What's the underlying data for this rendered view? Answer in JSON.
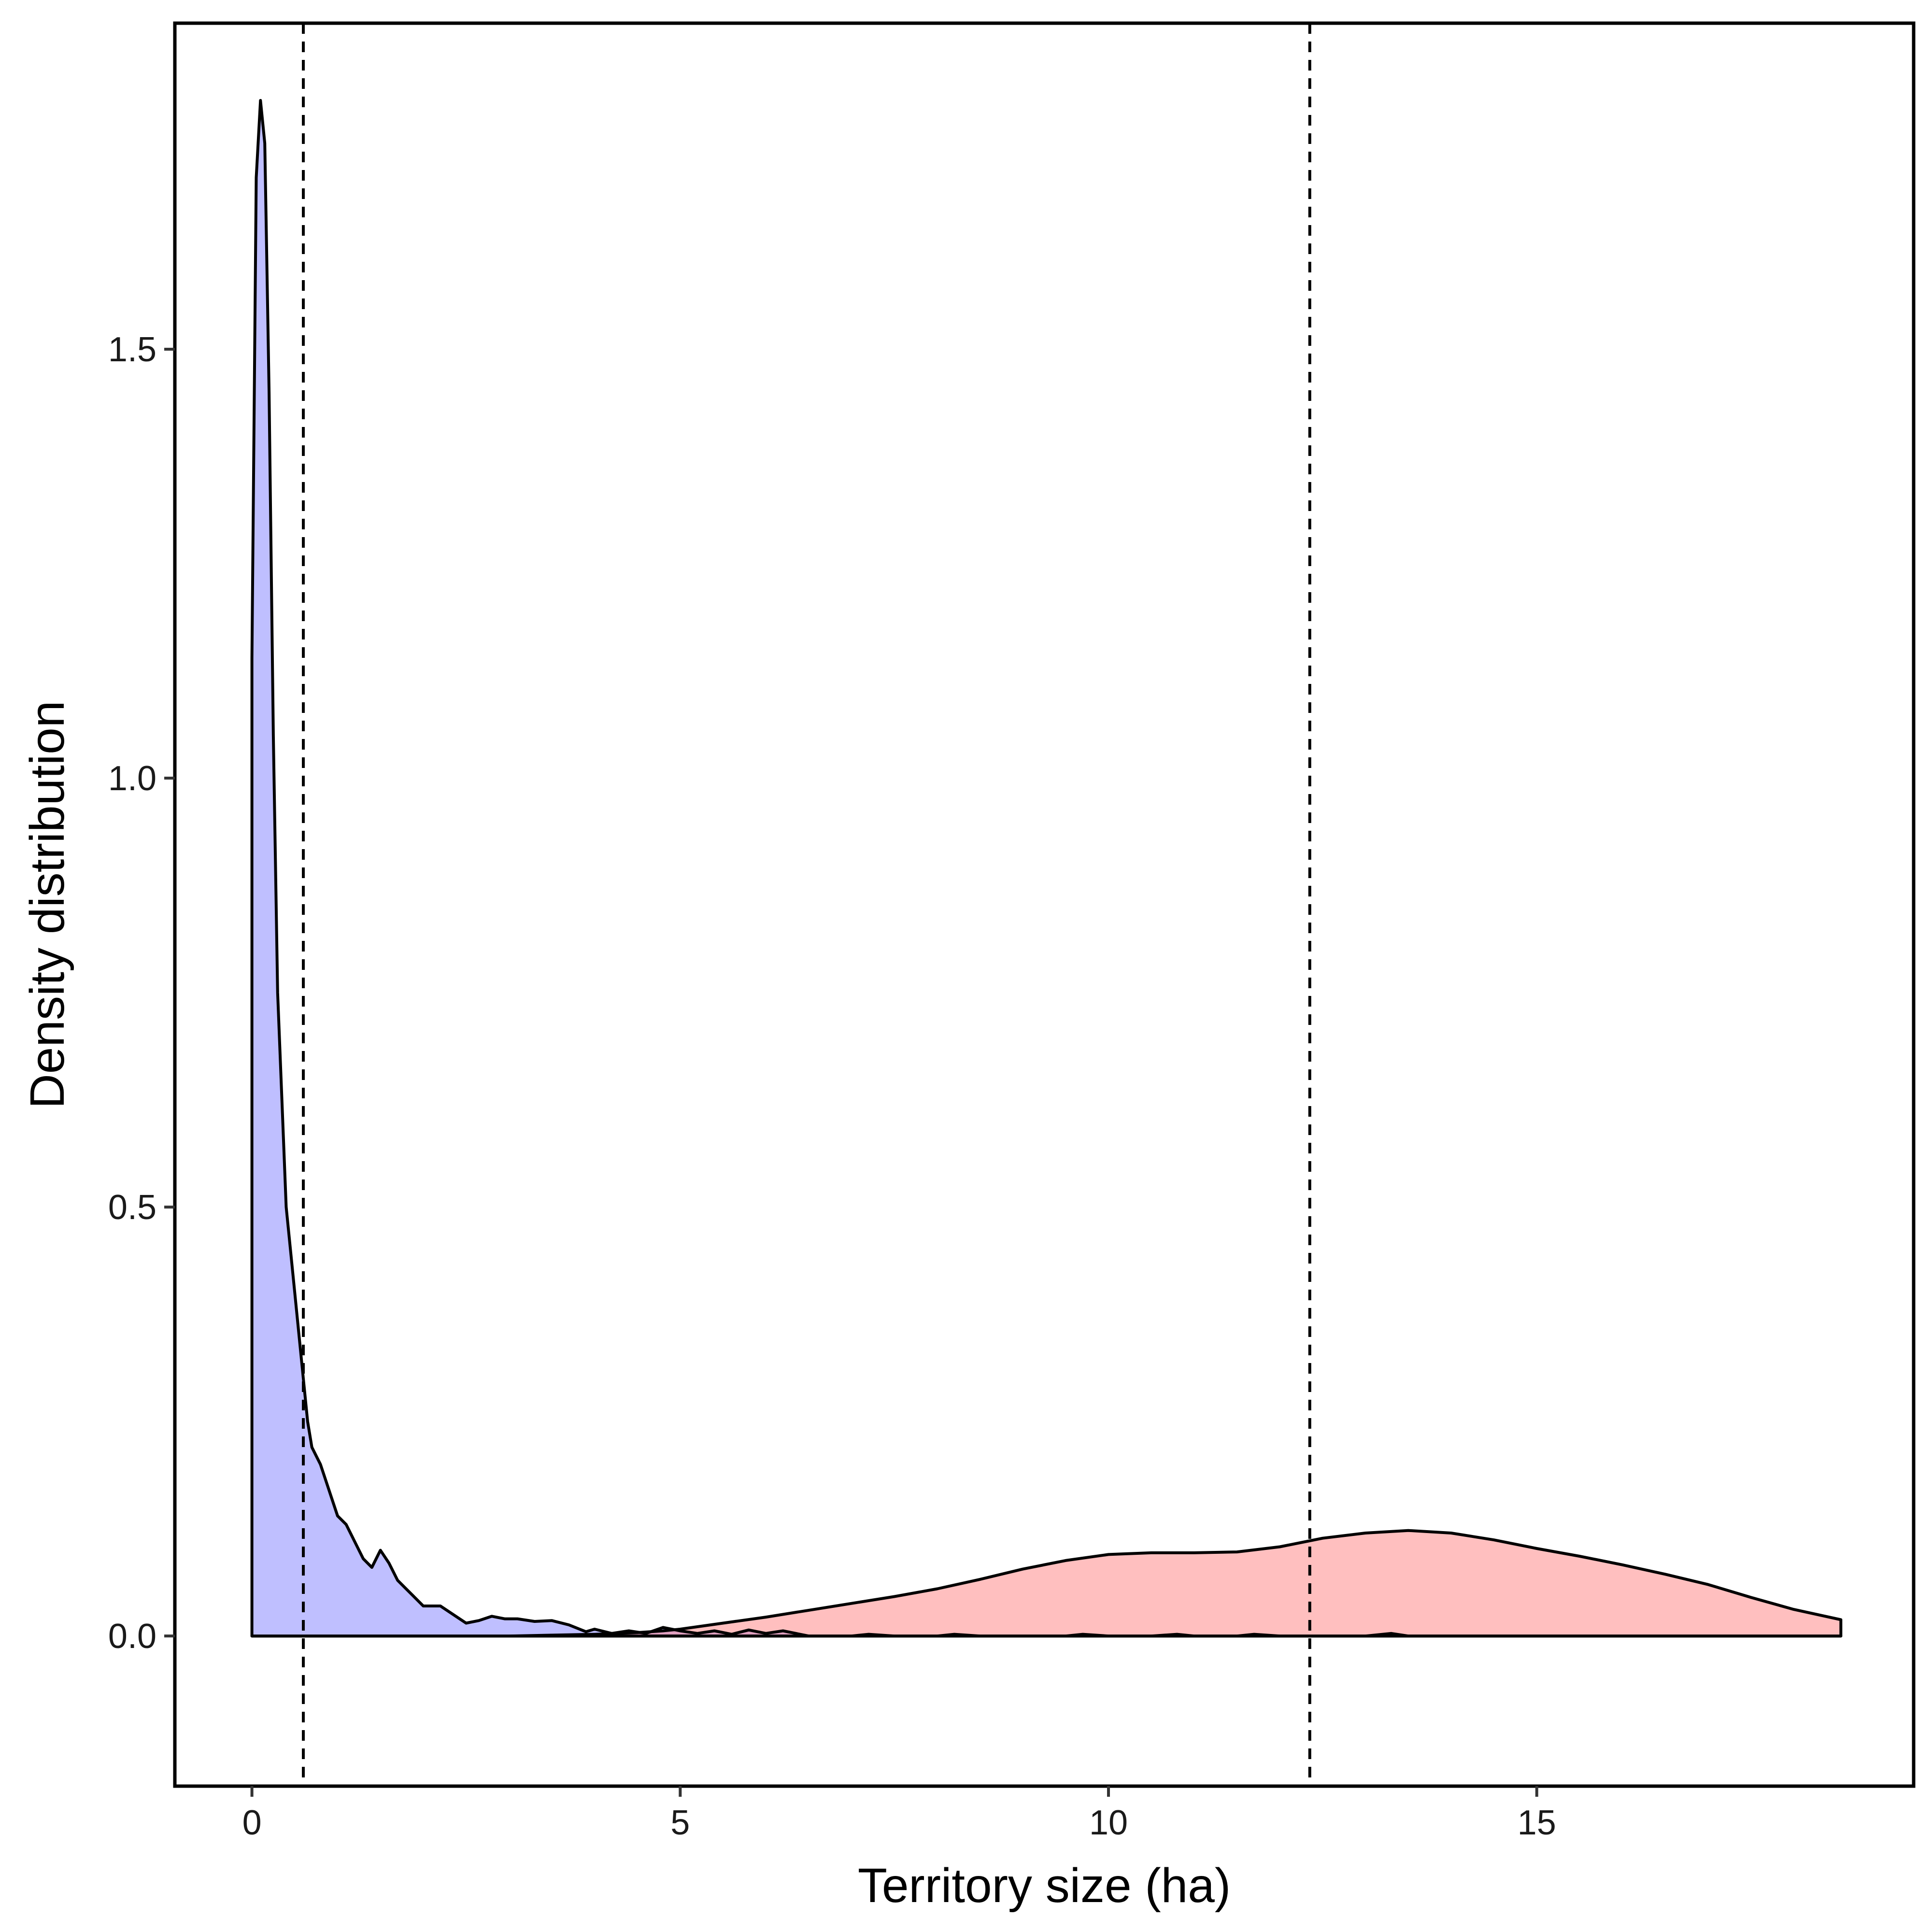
{
  "chart_data": {
    "type": "area",
    "xlabel": "Territory size (ha)",
    "ylabel": "Density distribution",
    "xlim": [
      -0.9,
      19.4
    ],
    "ylim": [
      -0.175,
      1.88
    ],
    "x_ticks": [
      0,
      5,
      10,
      15
    ],
    "x_tick_labels": [
      "0",
      "5",
      "10",
      "15"
    ],
    "y_ticks": [
      0.0,
      0.5,
      1.0,
      1.5
    ],
    "y_tick_labels": [
      "0.0",
      "0.5",
      "1.0",
      "1.5"
    ],
    "grid": false,
    "legend": "none",
    "vlines": [
      0.6,
      12.35
    ],
    "series": [
      {
        "color": "#8080ff",
        "x": [
          0,
          0.05,
          0.1,
          0.15,
          0.2,
          0.25,
          0.3,
          0.4,
          0.5,
          0.6,
          0.65,
          0.7,
          0.8,
          0.9,
          1.0,
          1.1,
          1.2,
          1.3,
          1.4,
          1.5,
          1.6,
          1.7,
          1.8,
          1.9,
          2.0,
          2.2,
          2.35,
          2.5,
          2.65,
          2.8,
          2.95,
          3.1,
          3.3,
          3.5,
          3.7,
          3.9,
          4.0,
          4.2,
          4.4,
          4.6,
          4.8,
          5.0,
          5.2,
          5.4,
          5.6,
          5.8,
          6.0,
          6.2,
          6.5,
          7.0,
          7.2,
          7.5,
          8.0,
          8.2,
          8.5,
          9.0,
          9.5,
          9.7,
          10.0,
          10.5,
          10.8,
          11.0,
          11.5,
          11.7,
          12.0,
          12.5,
          13.0,
          13.3,
          13.5,
          14.0,
          15.0,
          16.0,
          17.0,
          18.0,
          18.55
        ],
        "y": [
          1.14,
          1.7,
          1.79,
          1.74,
          1.45,
          1.05,
          0.75,
          0.5,
          0.4,
          0.3,
          0.25,
          0.22,
          0.2,
          0.17,
          0.14,
          0.13,
          0.11,
          0.09,
          0.08,
          0.1,
          0.085,
          0.065,
          0.055,
          0.045,
          0.035,
          0.035,
          0.025,
          0.015,
          0.018,
          0.023,
          0.02,
          0.02,
          0.017,
          0.018,
          0.013,
          0.005,
          0.008,
          0.003,
          0.006,
          0.003,
          0.01,
          0.006,
          0.003,
          0.006,
          0.002,
          0.007,
          0.003,
          0.006,
          0.0,
          0.0,
          0.002,
          0.0,
          0.0,
          0.002,
          0.0,
          0.0,
          0.0,
          0.002,
          0.0,
          0.0,
          0.002,
          0.0,
          0.0,
          0.002,
          0.0,
          0.0,
          0.0,
          0.003,
          0.0,
          0.0,
          0.0,
          0.0,
          0.0,
          0.0,
          0.0
        ]
      },
      {
        "color": "#ff8080",
        "x": [
          0,
          1.0,
          2.0,
          3.0,
          3.5,
          4.0,
          4.5,
          4.8,
          5.0,
          5.5,
          6.0,
          6.5,
          7.0,
          7.5,
          8.0,
          8.5,
          9.0,
          9.5,
          10.0,
          10.5,
          11.0,
          11.5,
          12.0,
          12.5,
          13.0,
          13.5,
          14.0,
          14.5,
          15.0,
          15.5,
          16.0,
          16.5,
          17.0,
          17.5,
          18.0,
          18.55
        ],
        "y": [
          0.0,
          0.0,
          0.0,
          0.0,
          0.001,
          0.002,
          0.004,
          0.006,
          0.008,
          0.015,
          0.022,
          0.03,
          0.038,
          0.046,
          0.055,
          0.066,
          0.078,
          0.088,
          0.095,
          0.097,
          0.097,
          0.098,
          0.104,
          0.114,
          0.12,
          0.123,
          0.12,
          0.112,
          0.102,
          0.093,
          0.083,
          0.072,
          0.06,
          0.045,
          0.031,
          0.019
        ]
      }
    ]
  }
}
